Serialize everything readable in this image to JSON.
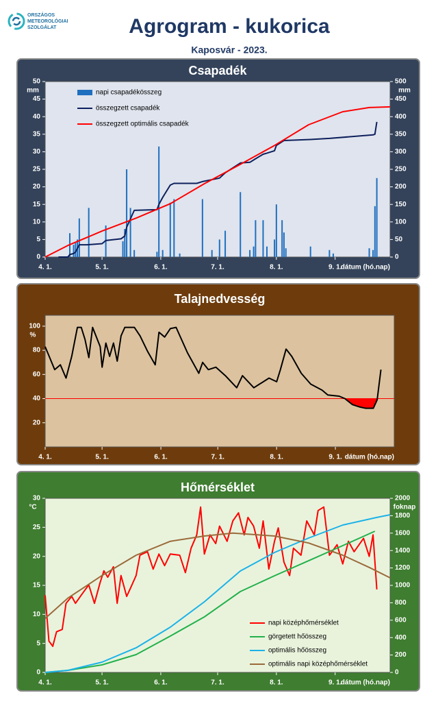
{
  "header": {
    "logo": [
      "ORSZÁGOS",
      "METEOROLÓGIAI",
      "SZOLGÁLAT"
    ],
    "title": "Agrogram - kukorica",
    "subtitle": "Kaposvár - 2023."
  },
  "chart_data": [
    {
      "type": "combo",
      "title": "Csapadék",
      "ylabel": "mm",
      "y2label": "mm",
      "xlabel": "dátum (hó.nap)",
      "legend": "upper left",
      "xlim": [
        0,
        182
      ],
      "xticks": [
        {
          "value": 0,
          "label": "4. 1."
        },
        {
          "value": 30,
          "label": "5. 1."
        },
        {
          "value": 61,
          "label": "6. 1."
        },
        {
          "value": 91,
          "label": "7. 1."
        },
        {
          "value": 122,
          "label": "8. 1."
        },
        {
          "value": 153,
          "label": "9. 1."
        }
      ],
      "ylim": [
        0,
        50
      ],
      "yticks": [
        0,
        5,
        10,
        15,
        20,
        25,
        30,
        35,
        40,
        45,
        50
      ],
      "y2lim": [
        0,
        500
      ],
      "y2ticks": [
        0,
        50,
        100,
        150,
        200,
        250,
        300,
        350,
        400,
        450,
        500
      ],
      "series": [
        {
          "name": "napi csapadékösszeg",
          "type": "bar",
          "color": "#1f6fbf",
          "x": [
            13,
            15,
            16,
            17,
            18,
            23,
            32,
            41,
            42,
            43,
            45,
            47,
            59,
            60,
            62,
            66,
            68,
            71,
            83,
            88,
            92,
            95,
            103,
            108,
            110,
            111,
            115,
            117,
            121,
            122,
            125,
            126,
            127,
            140,
            150,
            152,
            171,
            173,
            174,
            175
          ],
          "values": [
            6.8,
            3.5,
            4,
            5,
            11,
            14,
            9,
            4.5,
            8,
            25,
            14,
            2,
            1.5,
            31.5,
            2,
            15.5,
            16.5,
            1,
            16.5,
            2,
            5,
            7.5,
            18.5,
            2,
            3,
            10.5,
            10.5,
            3,
            5,
            15,
            10.5,
            7,
            2.5,
            3,
            2,
            1,
            2.5,
            2,
            14.5,
            22.5
          ]
        },
        {
          "name": "összegzett csapadék",
          "type": "line",
          "axis": "y2",
          "color": "#0d1f5c",
          "x": [
            7,
            12,
            13,
            15,
            16,
            18,
            22,
            30,
            32,
            40,
            42,
            43,
            47,
            59,
            60,
            62,
            66,
            68,
            80,
            83,
            92,
            95,
            103,
            108,
            111,
            115,
            117,
            121,
            122,
            126,
            140,
            150,
            173,
            174,
            175
          ],
          "values": [
            0,
            0,
            7,
            10,
            14,
            35,
            35,
            38,
            47,
            52,
            60,
            85,
            133,
            135,
            150,
            170,
            205,
            210,
            210,
            215,
            225,
            240,
            268,
            270,
            280,
            293,
            296,
            303,
            318,
            332,
            335,
            338,
            348,
            350,
            385
          ]
        },
        {
          "name": "összegzett optimális  csapadék",
          "type": "line",
          "axis": "y2",
          "color": "#ff0000",
          "x": [
            0,
            12,
            30,
            48,
            66,
            84,
            103,
            121,
            139,
            157,
            171,
            182
          ],
          "values": [
            0,
            33,
            74,
            111,
            152,
            209,
            264,
            318,
            377,
            414,
            426,
            428
          ]
        }
      ]
    },
    {
      "type": "line",
      "title": "Talajnedvesség",
      "ylabel": "%",
      "xlabel": "dátum (hó.nap)",
      "xlim": [
        0,
        184
      ],
      "xticks": [
        {
          "value": 0,
          "label": "4. 1."
        },
        {
          "value": 30,
          "label": "5. 1."
        },
        {
          "value": 61,
          "label": "6. 1."
        },
        {
          "value": 91,
          "label": "7. 1."
        },
        {
          "value": 122,
          "label": "8. 1."
        },
        {
          "value": 153,
          "label": "9. 1."
        }
      ],
      "ylim": [
        0,
        109
      ],
      "yticks": [
        20,
        40,
        60,
        80,
        100
      ],
      "threshold": 40,
      "threshold_color": "#ff0000",
      "series": [
        {
          "type": "line",
          "color": "#000000",
          "x": [
            0,
            5,
            8,
            11,
            14,
            17,
            19,
            21,
            23,
            25,
            29,
            30,
            32,
            34,
            36,
            38,
            40,
            42,
            47,
            50,
            54,
            58,
            60,
            63,
            66,
            69,
            71,
            75,
            81,
            83,
            86,
            90,
            95,
            101,
            104,
            110,
            113,
            118,
            122,
            124,
            127,
            130,
            135,
            140,
            146,
            149,
            155,
            158,
            162,
            166,
            169,
            173,
            175,
            177
          ],
          "values": [
            83,
            64,
            68,
            57,
            75,
            99,
            99,
            89,
            74,
            99,
            83,
            66,
            86,
            75,
            86,
            71,
            92,
            99,
            99,
            92,
            79,
            68,
            95,
            91,
            98,
            99,
            92,
            78,
            61,
            70,
            64,
            66,
            59,
            49,
            59,
            49,
            52,
            57,
            54,
            64,
            81,
            75,
            61,
            52,
            47,
            43,
            42,
            40,
            35,
            33,
            32,
            32,
            39,
            64
          ]
        }
      ]
    },
    {
      "type": "combo",
      "title": "Hőmérséklet",
      "ylabel": "°C",
      "y2label": "foknap",
      "xlabel": "dátum (hó.nap)",
      "legend": "lower right",
      "xlim": [
        0,
        182
      ],
      "xticks": [
        {
          "value": 0,
          "label": "4. 1."
        },
        {
          "value": 30,
          "label": "5. 1."
        },
        {
          "value": 61,
          "label": "6. 1."
        },
        {
          "value": 91,
          "label": "7. 1."
        },
        {
          "value": 122,
          "label": "8. 1."
        },
        {
          "value": 153,
          "label": "9. 1."
        }
      ],
      "ylim": [
        0,
        30
      ],
      "yticks": [
        0,
        5,
        10,
        15,
        20,
        25,
        30
      ],
      "y2lim": [
        0,
        2000
      ],
      "y2ticks": [
        0,
        200,
        400,
        600,
        800,
        1000,
        1200,
        1400,
        1600,
        1800,
        2000
      ],
      "series": [
        {
          "name": "napi középhőmérséklet",
          "type": "line",
          "color": "#ff0000",
          "x": [
            0,
            2,
            4,
            6,
            9,
            11,
            14,
            16,
            19,
            23,
            26,
            29,
            31,
            33,
            36,
            38,
            40,
            43,
            45,
            48,
            50,
            54,
            57,
            60,
            63,
            66,
            71,
            74,
            77,
            80,
            82,
            84,
            87,
            90,
            92,
            96,
            99,
            102,
            105,
            107,
            110,
            113,
            115,
            118,
            121,
            123,
            126,
            129,
            131,
            135,
            138,
            142,
            144,
            147,
            150,
            154,
            157,
            160,
            163,
            168,
            171,
            173,
            175
          ],
          "values": [
            13.3,
            5.4,
            4.5,
            7.0,
            7.4,
            11.9,
            13.1,
            11.9,
            13.3,
            15.1,
            11.9,
            15.5,
            17.5,
            16.4,
            18.2,
            11.9,
            16.7,
            13.1,
            14.5,
            16.7,
            20.2,
            20.8,
            17.8,
            20.4,
            18.4,
            20.4,
            20.2,
            17.2,
            21.4,
            23.7,
            28.5,
            20.4,
            23.7,
            22.2,
            25.2,
            22.6,
            26.1,
            27.5,
            23.7,
            26.7,
            25.2,
            21.4,
            26.1,
            17.8,
            22.6,
            24.9,
            19.0,
            16.7,
            21.4,
            20.2,
            26.1,
            23.7,
            27.9,
            28.5,
            20.2,
            22.0,
            18.7,
            22.6,
            20.8,
            23.1,
            20.0,
            23.7,
            14.3
          ]
        },
        {
          "name": "görgetett hőösszeg",
          "type": "line",
          "axis": "y2",
          "color": "#22b14c",
          "x": [
            0,
            12,
            30,
            48,
            66,
            84,
            103,
            121,
            139,
            157,
            174
          ],
          "values": [
            0,
            24,
            87,
            205,
            417,
            638,
            929,
            1110,
            1283,
            1457,
            1622
          ]
        },
        {
          "name": "optimális hőösszeg",
          "type": "line",
          "axis": "y2",
          "color": "#1ab2e8",
          "x": [
            0,
            12,
            30,
            48,
            66,
            84,
            103,
            121,
            139,
            157,
            175,
            182
          ],
          "values": [
            0,
            24,
            118,
            283,
            520,
            811,
            1165,
            1378,
            1543,
            1693,
            1780,
            1811
          ]
        },
        {
          "name": "optimális napi középhőmérséklet",
          "type": "line",
          "color": "#9b6a3a",
          "x": [
            0,
            12,
            30,
            48,
            66,
            84,
            99,
            121,
            139,
            157,
            171,
            182
          ],
          "values": [
            9.3,
            12.8,
            16.7,
            20.2,
            22.6,
            23.5,
            24.0,
            23.5,
            22.3,
            20.2,
            18.1,
            16.3
          ]
        }
      ]
    }
  ]
}
